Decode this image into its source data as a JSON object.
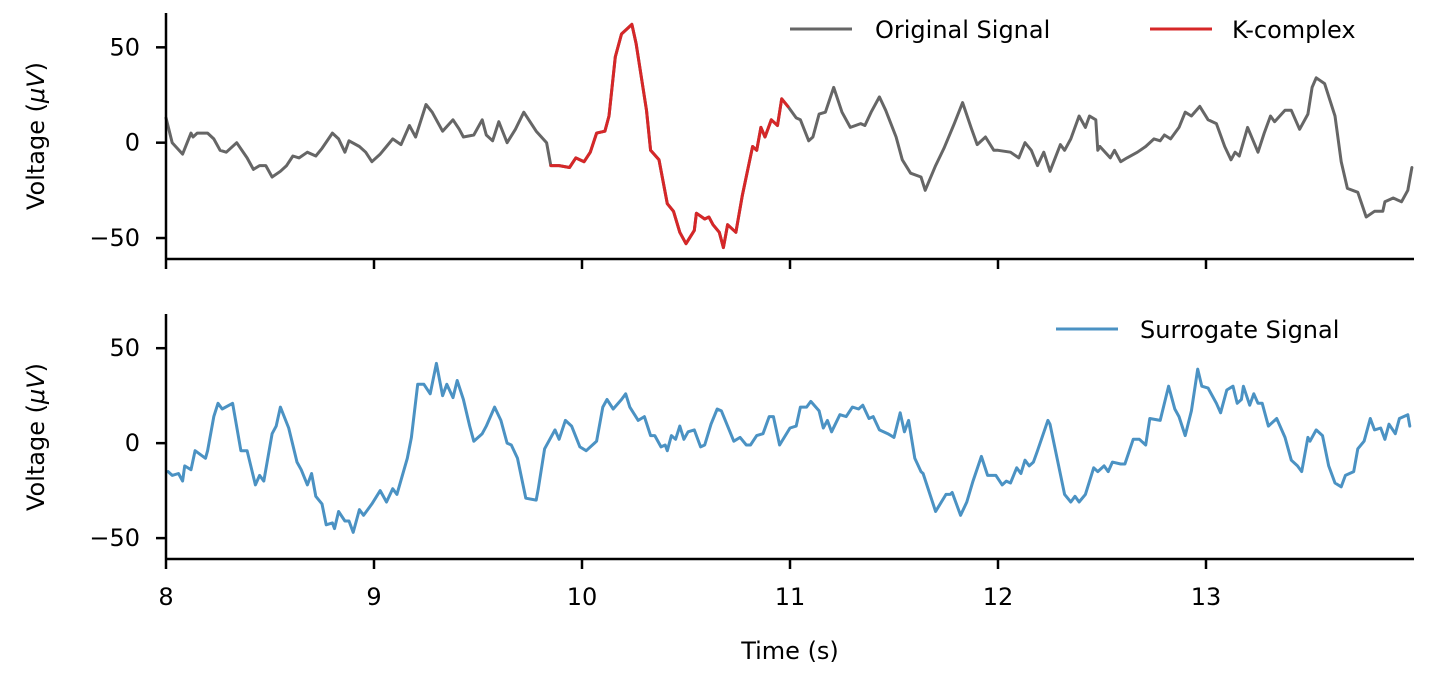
{
  "chart_data": [
    {
      "type": "line",
      "panel": "top",
      "xlim": [
        8,
        14
      ],
      "ylim": [
        -61,
        68
      ],
      "xticks": [
        8,
        9,
        10,
        11,
        12,
        13
      ],
      "show_xtick_labels": false,
      "yticks": [
        50,
        0,
        -50
      ],
      "ytick_labels": [
        "50",
        "0",
        "−50"
      ],
      "ylabel": "Voltage (μV)",
      "grid": false,
      "legend": "top-right",
      "series": [
        {
          "name": "Original Signal",
          "color": "#666666",
          "x": [
            8.0,
            8.03,
            8.08,
            8.12,
            8.13,
            8.15,
            8.2,
            8.23,
            8.26,
            8.29,
            8.34,
            8.39,
            8.42,
            8.45,
            8.48,
            8.51,
            8.55,
            8.58,
            8.61,
            8.64,
            8.68,
            8.72,
            8.75,
            8.8,
            8.83,
            8.86,
            8.88,
            8.93,
            8.96,
            8.99,
            9.03,
            9.06,
            9.09,
            9.13,
            9.17,
            9.2,
            9.25,
            9.28,
            9.33,
            9.38,
            9.41,
            9.43,
            9.48,
            9.52,
            9.54,
            9.57,
            9.6,
            9.64,
            9.68,
            9.72,
            9.78,
            9.83,
            9.85,
            9.89,
            9.94,
            9.97,
            10.01,
            10.04,
            10.07,
            10.11,
            10.13,
            10.16,
            10.19,
            10.24,
            10.26,
            10.31,
            10.33,
            10.37,
            10.41,
            10.44,
            10.47,
            10.5,
            10.54,
            10.55,
            10.59,
            10.61,
            10.63,
            10.66,
            10.68,
            10.7,
            10.74,
            10.77,
            10.82,
            10.84,
            10.86,
            10.88,
            10.91,
            10.94,
            10.96,
            10.99,
            11.03,
            11.05,
            11.09,
            11.11,
            11.14,
            11.17,
            11.21,
            11.25,
            11.29,
            11.34,
            11.36,
            11.39,
            11.43,
            11.46,
            11.51,
            11.54,
            11.58,
            11.63,
            11.65,
            11.7,
            11.74,
            11.79,
            11.83,
            11.87,
            11.9,
            11.94,
            11.98,
            12.0,
            12.06,
            12.1,
            12.13,
            12.16,
            12.19,
            12.22,
            12.25,
            12.3,
            12.32,
            12.35,
            12.39,
            12.42,
            12.44,
            12.47,
            12.48,
            12.49,
            12.54,
            12.56,
            12.59,
            12.62,
            12.67,
            12.71,
            12.75,
            12.78,
            12.8,
            12.83,
            12.87,
            12.9,
            12.93,
            12.97,
            13.01,
            13.05,
            13.09,
            13.12,
            13.14,
            13.16,
            13.2,
            13.25,
            13.28,
            13.31,
            13.33,
            13.38,
            13.41,
            13.45,
            13.49,
            13.51,
            13.53,
            13.57,
            13.62,
            13.65,
            13.68,
            13.73,
            13.77,
            13.81,
            13.85,
            13.86,
            13.9,
            13.94,
            13.97,
            13.99
          ],
          "y": [
            13,
            0,
            -6,
            5,
            3,
            5,
            5,
            2,
            -4,
            -5,
            0,
            -8,
            -14,
            -12,
            -12,
            -18,
            -15,
            -12,
            -7,
            -8,
            -5,
            -7,
            -3,
            5,
            2,
            -5,
            1,
            -2,
            -5,
            -10,
            -6,
            -2,
            2,
            -1,
            9,
            3,
            20,
            16,
            6,
            12,
            7,
            3,
            4,
            12,
            4,
            1,
            11,
            0,
            7,
            16,
            6,
            0,
            -12,
            -12,
            -13,
            -8,
            -10,
            -5,
            5,
            6,
            14,
            45,
            57,
            62,
            52,
            17,
            -4,
            -9,
            -32,
            -36,
            -47,
            -53,
            -46,
            -37,
            -40,
            -39,
            -43,
            -47,
            -55,
            -43,
            -47,
            -28,
            -2,
            -4,
            8,
            3,
            12,
            9,
            23,
            19,
            13,
            12,
            1,
            3,
            15,
            16,
            29,
            16,
            8,
            10,
            9,
            16,
            24,
            17,
            3,
            -9,
            -16,
            -18,
            -25,
            -12,
            -3,
            10,
            21,
            8,
            -1,
            3,
            -4,
            -4,
            -5,
            -8,
            0,
            -4,
            -12,
            -5,
            -15,
            -1,
            -4,
            2,
            14,
            8,
            14,
            12,
            -4,
            -2,
            -8,
            -4,
            -10,
            -8,
            -5,
            -2,
            2,
            1,
            4,
            2,
            8,
            16,
            14,
            19,
            12,
            10,
            -2,
            -9,
            -5,
            -7,
            8,
            -5,
            5,
            14,
            11,
            17,
            17,
            7,
            15,
            29,
            34,
            31,
            14,
            -10,
            -24,
            -26,
            -39,
            -36,
            -36,
            -31,
            -29,
            -31,
            -25,
            -13
          ]
        },
        {
          "name": "K-complex",
          "color": "#d62728",
          "x_range": [
            9.85,
            10.99
          ]
        }
      ]
    },
    {
      "type": "line",
      "panel": "bottom",
      "xlim": [
        8,
        14
      ],
      "ylim": [
        -61,
        68
      ],
      "xticks": [
        8,
        9,
        10,
        11,
        12,
        13
      ],
      "xtick_labels": [
        "8",
        "9",
        "10",
        "11",
        "12",
        "13"
      ],
      "show_xtick_labels": true,
      "yticks": [
        50,
        0,
        -50
      ],
      "ytick_labels": [
        "50",
        "0",
        "−50"
      ],
      "xlabel": "Time (s)",
      "ylabel": "Voltage (μV)",
      "grid": false,
      "legend": "top-right",
      "series": [
        {
          "name": "Surrogate Signal",
          "color": "#4b92c3",
          "x": [
            8.01,
            8.03,
            8.06,
            8.08,
            8.09,
            8.12,
            8.14,
            8.19,
            8.2,
            8.23,
            8.25,
            8.27,
            8.32,
            8.36,
            8.39,
            8.43,
            8.45,
            8.47,
            8.51,
            8.53,
            8.55,
            8.59,
            8.63,
            8.65,
            8.68,
            8.7,
            8.72,
            8.75,
            8.77,
            8.8,
            8.81,
            8.83,
            8.86,
            8.88,
            8.9,
            8.93,
            8.95,
            8.99,
            9.03,
            9.06,
            9.09,
            9.11,
            9.16,
            9.18,
            9.21,
            9.24,
            9.27,
            9.3,
            9.33,
            9.35,
            9.38,
            9.4,
            9.43,
            9.46,
            9.48,
            9.52,
            9.54,
            9.58,
            9.61,
            9.64,
            9.66,
            9.69,
            9.73,
            9.78,
            9.79,
            9.82,
            9.87,
            9.89,
            9.92,
            9.95,
            9.99,
            10.02,
            10.06,
            10.07,
            10.1,
            10.12,
            10.15,
            10.19,
            10.21,
            10.23,
            10.27,
            10.3,
            10.33,
            10.35,
            10.38,
            10.4,
            10.41,
            10.43,
            10.45,
            10.47,
            10.49,
            10.51,
            10.54,
            10.57,
            10.59,
            10.62,
            10.65,
            10.67,
            10.73,
            10.76,
            10.79,
            10.81,
            10.84,
            10.87,
            10.9,
            10.92,
            10.95,
            11.0,
            11.03,
            11.05,
            11.08,
            11.1,
            11.14,
            11.16,
            11.18,
            11.2,
            11.24,
            11.27,
            11.3,
            11.33,
            11.35,
            11.38,
            11.4,
            11.43,
            11.47,
            11.5,
            11.53,
            11.55,
            11.57,
            11.6,
            11.63,
            11.64,
            11.7,
            11.75,
            11.77,
            11.78,
            11.82,
            11.85,
            11.88,
            11.92,
            11.95,
            11.99,
            12.02,
            12.04,
            12.06,
            12.09,
            12.11,
            12.13,
            12.15,
            12.17,
            12.19,
            12.24,
            12.25,
            12.32,
            12.35,
            12.37,
            12.39,
            12.42,
            12.46,
            12.48,
            12.51,
            12.53,
            12.55,
            12.59,
            12.61,
            12.65,
            12.68,
            12.71,
            12.73,
            12.78,
            12.82,
            12.85,
            12.87,
            12.9,
            12.93,
            12.96,
            12.98,
            13.01,
            13.05,
            13.07,
            13.1,
            13.13,
            13.15,
            13.17,
            13.18,
            13.21,
            13.23,
            13.25,
            13.27,
            13.3,
            13.34,
            13.38,
            13.41,
            13.44,
            13.46,
            13.49,
            13.5,
            13.53,
            13.56,
            13.59,
            13.62,
            13.65,
            13.67,
            13.71,
            13.73,
            13.76,
            13.79,
            13.81,
            13.84,
            13.86,
            13.88,
            13.91,
            13.93,
            13.97,
            13.98
          ],
          "y": [
            -15,
            -17,
            -16,
            -20,
            -12,
            -14,
            -4,
            -8,
            -4,
            14,
            21,
            18,
            21,
            -4,
            -4,
            -22,
            -17,
            -20,
            5,
            9,
            19,
            8,
            -10,
            -14,
            -22,
            -16,
            -28,
            -32,
            -43,
            -42,
            -45,
            -36,
            -41,
            -41,
            -47,
            -35,
            -38,
            -32,
            -25,
            -31,
            -24,
            -27,
            -8,
            3,
            31,
            31,
            26,
            42,
            25,
            31,
            24,
            33,
            23,
            9,
            1,
            5,
            9,
            19,
            12,
            0,
            -1,
            -8,
            -29,
            -30,
            -24,
            -3,
            7,
            2,
            12,
            9,
            -2,
            -4,
            0,
            1,
            19,
            23,
            18,
            23,
            26,
            19,
            12,
            14,
            4,
            4,
            -2,
            -1,
            -4,
            4,
            2,
            9,
            2,
            6,
            7,
            -2,
            -1,
            10,
            18,
            17,
            1,
            3,
            -1,
            -1,
            4,
            5,
            14,
            14,
            -1,
            8,
            9,
            19,
            19,
            22,
            17,
            8,
            12,
            6,
            15,
            14,
            19,
            18,
            20,
            13,
            14,
            7,
            5,
            3,
            16,
            6,
            12,
            -8,
            -15,
            -16,
            -36,
            -27,
            -27,
            -26,
            -38,
            -31,
            -20,
            -7,
            -17,
            -17,
            -22,
            -20,
            -21,
            -13,
            -16,
            -9,
            -12,
            -10,
            -4,
            12,
            10,
            -27,
            -31,
            -28,
            -31,
            -27,
            -13,
            -15,
            -12,
            -15,
            -10,
            -11,
            -11,
            2,
            2,
            -1,
            13,
            12,
            30,
            18,
            14,
            4,
            17,
            39,
            30,
            29,
            21,
            16,
            28,
            30,
            21,
            23,
            30,
            20,
            26,
            21,
            21,
            9,
            13,
            3,
            -9,
            -12,
            -15,
            3,
            1,
            7,
            4,
            -12,
            -21,
            -23,
            -17,
            -15,
            -3,
            1,
            13,
            7,
            8,
            2,
            10,
            5,
            13,
            15,
            9
          ]
        }
      ]
    }
  ]
}
